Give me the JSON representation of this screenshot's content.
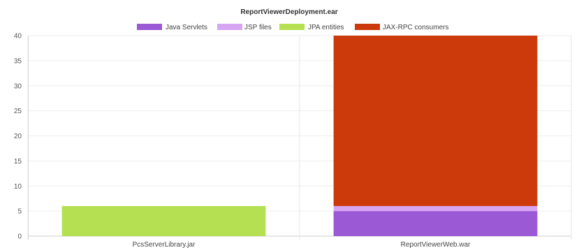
{
  "chart_data": {
    "type": "bar",
    "stacked": true,
    "title": "ReportViewerDeployment.ear",
    "xlabel": "",
    "ylabel": "",
    "categories": [
      "PcsServerLibrary.jar",
      "ReportViewerWeb.war"
    ],
    "series": [
      {
        "name": "Java Servlets",
        "color": "#9b59d6",
        "values": [
          0,
          5
        ]
      },
      {
        "name": "JSP files",
        "color": "#d6a6f2",
        "values": [
          0,
          1
        ]
      },
      {
        "name": "JPA entities",
        "color": "#b5e052",
        "values": [
          6,
          0
        ]
      },
      {
        "name": "JAX-RPC consumers",
        "color": "#cc3a0c",
        "values": [
          0,
          34
        ]
      }
    ],
    "ylim": [
      0,
      40
    ],
    "yticks": [
      "0",
      "5",
      "10",
      "15",
      "20",
      "25",
      "30",
      "35",
      "40"
    ],
    "grid": true,
    "legend_position": "top"
  }
}
